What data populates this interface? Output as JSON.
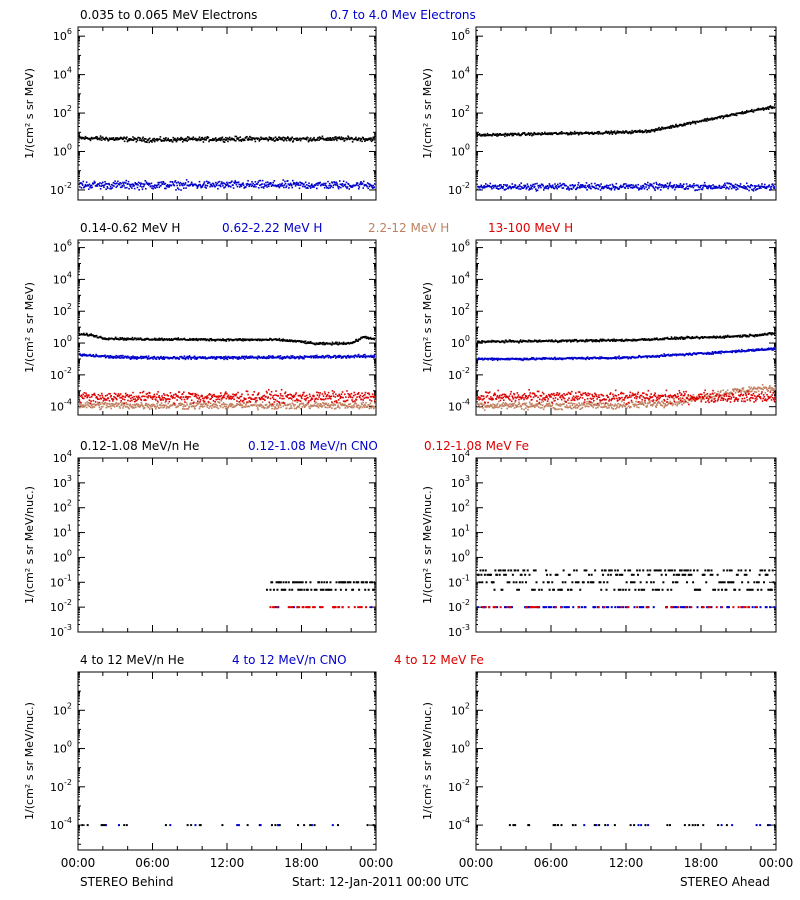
{
  "footer": {
    "left": "STEREO Behind",
    "center": "Start: 12-Jan-2011 00:00 UTC",
    "right": "STEREO Ahead"
  },
  "chart_data": [
    {
      "type": "scatter",
      "row": 0,
      "ylabel": "1/(cm² s sr MeV)",
      "yscale": "log",
      "ylim": [
        0.003,
        3000000
      ],
      "ytick_exponents": [
        -2,
        0,
        2,
        4,
        6
      ],
      "xlim": [
        "00:00",
        "24:00"
      ],
      "xtick_labels": [
        "00:00",
        "06:00",
        "12:00",
        "18:00",
        "00:00"
      ],
      "legend": [
        {
          "label": "0.035 to 0.065 MeV Electrons",
          "color": "#000000"
        },
        {
          "label": "0.7 to 4.0 Mev Electrons",
          "color": "#0000cc"
        }
      ],
      "panels": [
        {
          "name": "STEREO Behind",
          "series": [
            {
              "name": "0.035 to 0.065 MeV Electrons",
              "color": "#000000",
              "x_hours": [
                0,
                3,
                6,
                9,
                12,
                15,
                18,
                21,
                24
              ],
              "y": [
                5,
                4.5,
                4,
                4.2,
                4.5,
                4.5,
                4.5,
                4.5,
                4.5
              ],
              "scatter": 0.1
            },
            {
              "name": "0.7 to 4.0 Mev Electrons",
              "color": "#0000cc",
              "x_hours": [
                0,
                6,
                12,
                18,
                24
              ],
              "y": [
                0.018,
                0.018,
                0.018,
                0.018,
                0.018
              ],
              "scatter": 0.18
            }
          ]
        },
        {
          "name": "STEREO Ahead",
          "series": [
            {
              "name": "0.035 to 0.065 MeV Electrons",
              "color": "#000000",
              "x_hours": [
                0,
                4,
                8,
                12,
                14,
                16,
                18,
                20,
                22,
                24
              ],
              "y": [
                7,
                8,
                9,
                10,
                12,
                22,
                40,
                70,
                130,
                220
              ],
              "scatter": 0.06
            },
            {
              "name": "0.7 to 4.0 Mev Electrons",
              "color": "#0000cc",
              "x_hours": [
                0,
                6,
                12,
                18,
                24
              ],
              "y": [
                0.014,
                0.015,
                0.015,
                0.015,
                0.014
              ],
              "scatter": 0.15
            }
          ]
        }
      ]
    },
    {
      "type": "scatter",
      "row": 1,
      "ylabel": "1/(cm² s sr MeV)",
      "yscale": "log",
      "ylim": [
        3e-05,
        3000000
      ],
      "ytick_exponents": [
        -4,
        -2,
        0,
        2,
        4,
        6
      ],
      "xlim": [
        "00:00",
        "24:00"
      ],
      "xtick_labels": [
        "00:00",
        "06:00",
        "12:00",
        "18:00",
        "00:00"
      ],
      "legend": [
        {
          "label": "0.14-0.62 MeV H",
          "color": "#000000"
        },
        {
          "label": "0.62-2.22 MeV H",
          "color": "#0000cc"
        },
        {
          "label": "2.2-12 MeV H",
          "color": "#c08060"
        },
        {
          "label": "13-100 MeV H",
          "color": "#dd0000"
        }
      ],
      "panels": [
        {
          "name": "STEREO Behind",
          "series": [
            {
              "name": "0.14-0.62 MeV H",
              "color": "#000000",
              "x_hours": [
                0,
                1,
                2,
                4,
                8,
                12,
                16,
                18,
                19,
                20,
                22,
                23,
                24
              ],
              "y": [
                3.5,
                3.2,
                2,
                1.8,
                1.7,
                1.6,
                1.6,
                1.2,
                0.9,
                0.9,
                1.0,
                2.5,
                1.5
              ],
              "scatter": 0.06
            },
            {
              "name": "0.62-2.22 MeV H",
              "color": "#0000cc",
              "x_hours": [
                0,
                3,
                6,
                12,
                18,
                24
              ],
              "y": [
                0.18,
                0.13,
                0.12,
                0.12,
                0.13,
                0.15
              ],
              "scatter": 0.08
            },
            {
              "name": "2.2-12 MeV H",
              "color": "#c08060",
              "x_hours": [
                0,
                6,
                12,
                18,
                24
              ],
              "y": [
                0.00012,
                0.00012,
                0.00012,
                0.00012,
                0.00012
              ],
              "scatter": 0.2
            },
            {
              "name": "13-100 MeV H",
              "color": "#dd0000",
              "x_hours": [
                0,
                6,
                12,
                18,
                24
              ],
              "y": [
                0.0004,
                0.0004,
                0.0004,
                0.0004,
                0.0004
              ],
              "scatter": 0.3
            }
          ]
        },
        {
          "name": "STEREO Ahead",
          "series": [
            {
              "name": "0.14-0.62 MeV H",
              "color": "#000000",
              "x_hours": [
                0,
                4,
                8,
                12,
                16,
                18,
                20,
                22,
                24
              ],
              "y": [
                1.2,
                1.3,
                1.4,
                1.5,
                2,
                2.2,
                2.5,
                3,
                4
              ],
              "scatter": 0.06
            },
            {
              "name": "0.62-2.22 MeV H",
              "color": "#0000cc",
              "x_hours": [
                0,
                4,
                8,
                12,
                16,
                18,
                20,
                22,
                24
              ],
              "y": [
                0.1,
                0.1,
                0.11,
                0.12,
                0.18,
                0.22,
                0.28,
                0.35,
                0.45
              ],
              "scatter": 0.06
            },
            {
              "name": "2.2-12 MeV H",
              "color": "#c08060",
              "x_hours": [
                0,
                6,
                12,
                16,
                18,
                20,
                22,
                24
              ],
              "y": [
                0.00012,
                0.00012,
                0.00012,
                0.0002,
                0.0004,
                0.0008,
                0.0012,
                0.0015
              ],
              "scatter": 0.2
            },
            {
              "name": "13-100 MeV H",
              "color": "#dd0000",
              "x_hours": [
                0,
                6,
                12,
                18,
                24
              ],
              "y": [
                0.0004,
                0.0004,
                0.0004,
                0.0004,
                0.0004
              ],
              "scatter": 0.3
            }
          ]
        }
      ]
    },
    {
      "type": "scatter",
      "row": 2,
      "ylabel": "1/(cm² s sr MeV/nuc.)",
      "yscale": "log",
      "ylim": [
        0.001,
        10000
      ],
      "ytick_exponents": [
        -3,
        -2,
        -1,
        0,
        1,
        2,
        3,
        4
      ],
      "xlim": [
        "00:00",
        "24:00"
      ],
      "xtick_labels": [
        "00:00",
        "06:00",
        "12:00",
        "18:00",
        "00:00"
      ],
      "legend": [
        {
          "label": "0.12-1.08 MeV/n He",
          "color": "#000000"
        },
        {
          "label": "0.12-1.08 MeV/n CNO",
          "color": "#0000cc"
        },
        {
          "label": "0.12-1.08 MeV Fe",
          "color": "#dd0000"
        }
      ],
      "panels": [
        {
          "name": "STEREO Behind",
          "series": [
            {
              "name": "0.12-1.08 MeV/n He",
              "color": "#000000",
              "x_hours": [
                15,
                18,
                21,
                24
              ],
              "y": [
                0.05,
                0.05,
                0.05,
                0.05
              ],
              "levels": [
                0.05,
                0.1
              ],
              "scatter": 0,
              "density": 0.7
            },
            {
              "name": "0.12-1.08 MeV/n CNO",
              "color": "#0000cc",
              "x_hours": [
                15,
                24
              ],
              "y": [
                0.01,
                0.01
              ],
              "levels": [
                0.01
              ],
              "scatter": 0,
              "density": 0.05
            },
            {
              "name": "0.12-1.08 MeV Fe",
              "color": "#dd0000",
              "x_hours": [
                15,
                24
              ],
              "y": [
                0.01,
                0.01
              ],
              "levels": [
                0.01
              ],
              "scatter": 0,
              "density": 0.2
            }
          ]
        },
        {
          "name": "STEREO Ahead",
          "series": [
            {
              "name": "0.12-1.08 MeV/n He",
              "color": "#000000",
              "x_hours": [
                0,
                24
              ],
              "y": [
                0.05,
                0.05
              ],
              "levels": [
                0.05,
                0.1,
                0.2,
                0.3
              ],
              "scatter": 0,
              "density": 0.8
            },
            {
              "name": "0.12-1.08 MeV/n CNO",
              "color": "#0000cc",
              "x_hours": [
                0,
                24
              ],
              "y": [
                0.01,
                0.01
              ],
              "levels": [
                0.01
              ],
              "scatter": 0,
              "density": 0.25
            },
            {
              "name": "0.12-1.08 MeV Fe",
              "color": "#dd0000",
              "x_hours": [
                0,
                24
              ],
              "y": [
                0.01,
                0.01
              ],
              "levels": [
                0.01
              ],
              "scatter": 0,
              "density": 0.15
            }
          ]
        }
      ]
    },
    {
      "type": "scatter",
      "row": 3,
      "ylabel": "1/(cm² s sr MeV/nuc.)",
      "yscale": "log",
      "ylim": [
        5e-06,
        10000
      ],
      "ytick_exponents": [
        -4,
        -2,
        0,
        2
      ],
      "xlim": [
        "00:00",
        "24:00"
      ],
      "xtick_labels": [
        "00:00",
        "06:00",
        "12:00",
        "18:00",
        "00:00"
      ],
      "legend": [
        {
          "label": "4 to 12 MeV/n He",
          "color": "#000000"
        },
        {
          "label": "4 to 12 MeV/n CNO",
          "color": "#0000cc"
        },
        {
          "label": "4 to 12 MeV Fe",
          "color": "#dd0000"
        }
      ],
      "panels": [
        {
          "name": "STEREO Behind",
          "series": [
            {
              "name": "4 to 12 MeV/n He",
              "color": "#000000",
              "x_hours": [
                0,
                24
              ],
              "y": [
                0.0001,
                0.0001
              ],
              "levels": [
                0.0001
              ],
              "scatter": 0,
              "density": 0.08
            },
            {
              "name": "4 to 12 MeV/n CNO",
              "color": "#0000cc",
              "x_hours": [
                0,
                24
              ],
              "y": [
                0.0001,
                0.0001
              ],
              "levels": [
                0.0001
              ],
              "scatter": 0,
              "density": 0.02
            }
          ]
        },
        {
          "name": "STEREO Ahead",
          "series": [
            {
              "name": "4 to 12 MeV/n He",
              "color": "#000000",
              "x_hours": [
                2,
                24
              ],
              "y": [
                0.0001,
                0.0001
              ],
              "levels": [
                0.0001
              ],
              "scatter": 0,
              "density": 0.07
            },
            {
              "name": "4 to 12 MeV/n CNO",
              "color": "#0000cc",
              "x_hours": [
                2,
                24
              ],
              "y": [
                0.0001,
                0.0001
              ],
              "levels": [
                0.0001
              ],
              "scatter": 0,
              "density": 0.04
            }
          ]
        }
      ]
    }
  ]
}
